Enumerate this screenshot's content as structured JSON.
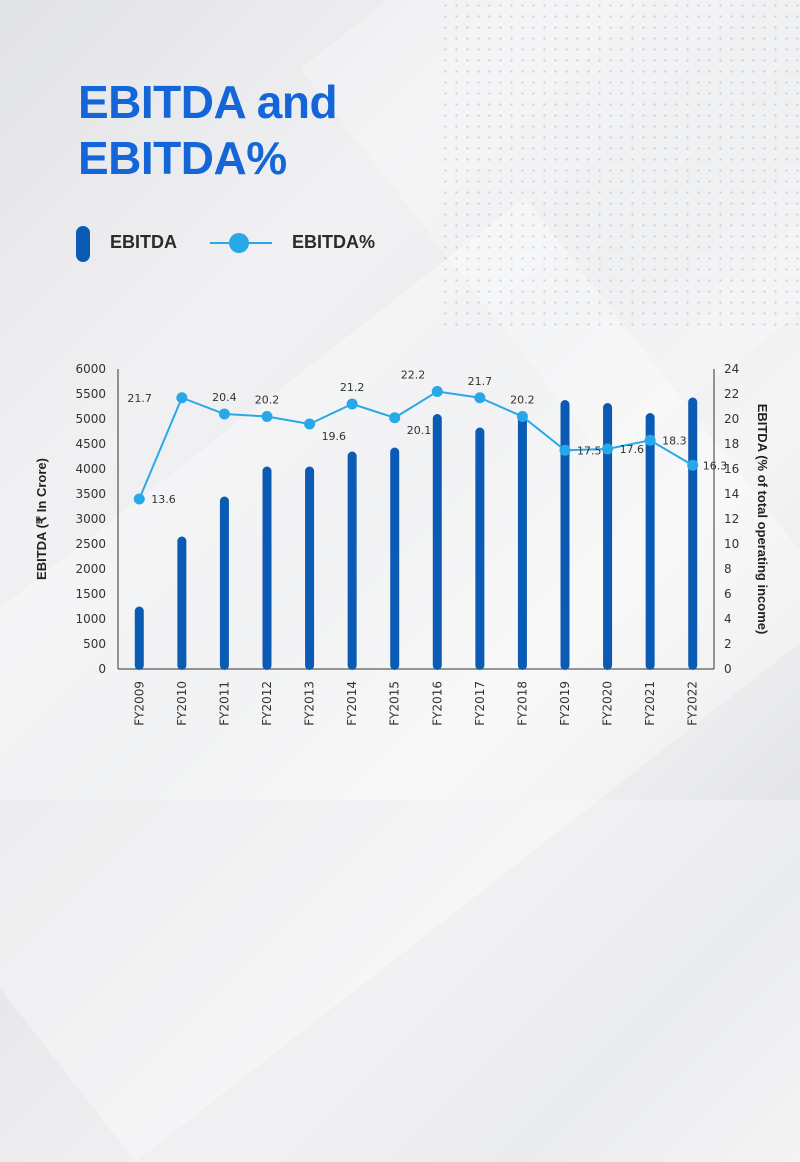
{
  "title": "EBITDA and EBITDA%",
  "legend": [
    {
      "label": "EBITDA",
      "color": "#0b5bb5"
    },
    {
      "label": "EBITDA%",
      "color": "#29a8e8"
    }
  ],
  "chart_data": {
    "type": "bar+line",
    "categories": [
      "FY2009",
      "FY2010",
      "FY2011",
      "FY2012",
      "FY2013",
      "FY2014",
      "FY2015",
      "FY2016",
      "FY2017",
      "FY2018",
      "FY2019",
      "FY2020",
      "FY2021",
      "FY2022"
    ],
    "series": [
      {
        "name": "EBITDA",
        "type": "bar",
        "axis": "left",
        "color": "#0b5bb5",
        "values": [
          1250,
          2650,
          3450,
          4050,
          4050,
          4350,
          4430,
          5100,
          4830,
          5150,
          5380,
          5320,
          5120,
          5430
        ]
      },
      {
        "name": "EBITDA%",
        "type": "line",
        "axis": "right",
        "color": "#29a8e8",
        "values": [
          13.6,
          21.7,
          20.4,
          20.2,
          19.6,
          21.2,
          20.1,
          22.2,
          21.7,
          20.2,
          17.5,
          17.6,
          18.3,
          16.3
        ],
        "labels": [
          "13.6",
          "21.7",
          "20.4",
          "20.2",
          "19.6",
          "21.2",
          "20.1",
          "22.2",
          "21.7",
          "20.2",
          "17.5",
          "17.6",
          "18.3",
          "16.3"
        ]
      }
    ],
    "ylabel": "EBITDA (₹ In Crore)",
    "y2label": "EBITDA (% of total operating income)",
    "ylim": [
      0,
      6000
    ],
    "yticks": [
      "0",
      "500",
      "1000",
      "1500",
      "2000",
      "2500",
      "3000",
      "3500",
      "4000",
      "4500",
      "5000",
      "5500",
      "6000"
    ],
    "y2lim": [
      0,
      24
    ],
    "y2ticks": [
      "0",
      "2",
      "4",
      "6",
      "8",
      "10",
      "12",
      "14",
      "16",
      "18",
      "20",
      "22",
      "24"
    ],
    "grid": false
  }
}
